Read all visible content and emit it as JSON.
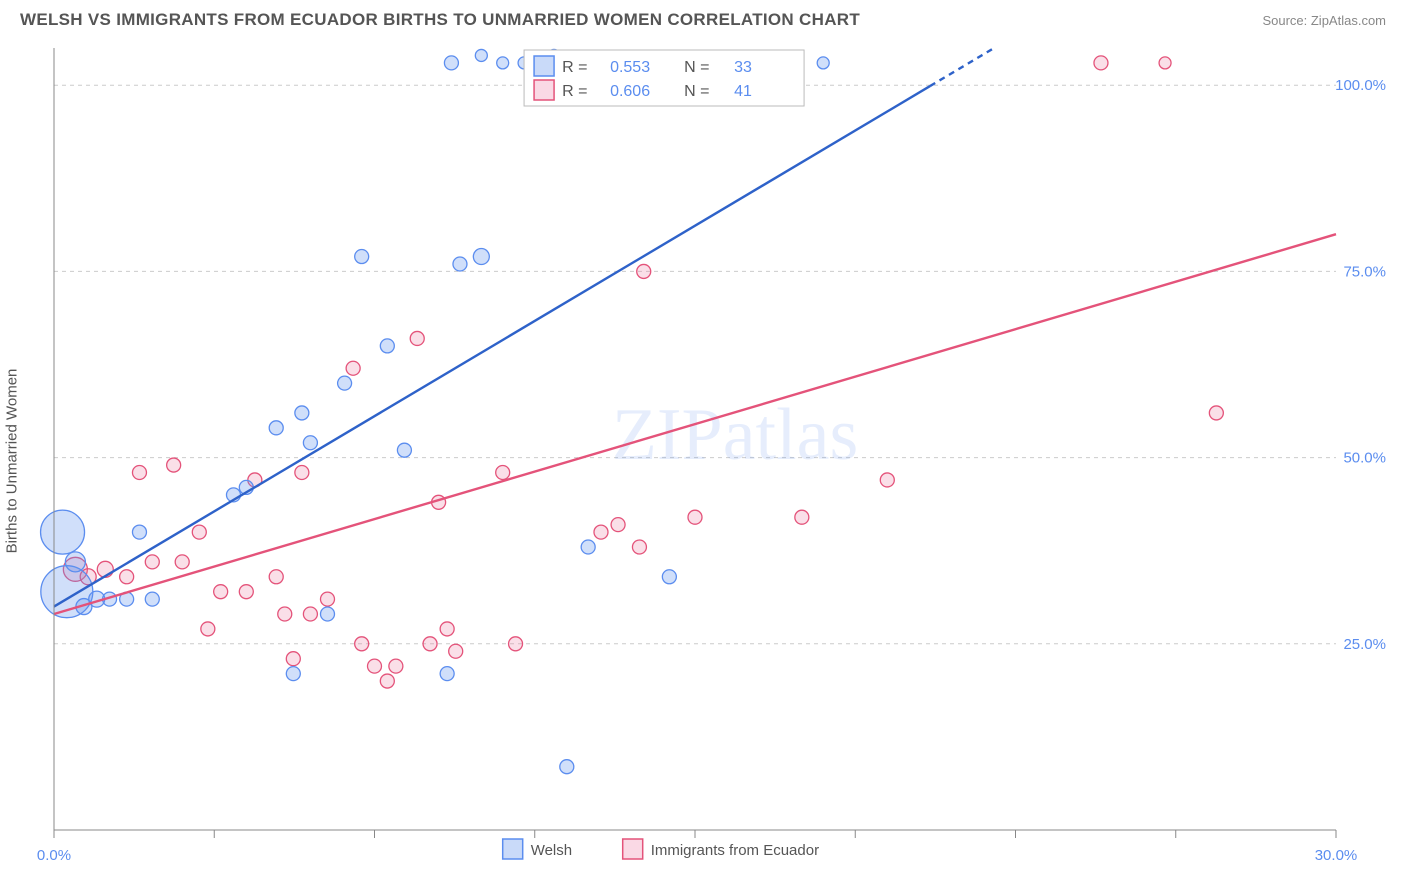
{
  "header": {
    "title": "WELSH VS IMMIGRANTS FROM ECUADOR BIRTHS TO UNMARRIED WOMEN CORRELATION CHART",
    "source": "Source: ZipAtlas.com"
  },
  "axes": {
    "ylabel": "Births to Unmarried Women",
    "xlim": [
      0,
      30
    ],
    "ylim": [
      0,
      105
    ],
    "yticks": [
      25,
      50,
      75,
      100
    ],
    "ytick_labels": [
      "25.0%",
      "50.0%",
      "75.0%",
      "100.0%"
    ],
    "xticks": [
      0,
      3.75,
      7.5,
      11.25,
      15,
      18.75,
      22.5,
      26.25,
      30
    ],
    "xtick_labels": {
      "0": "0.0%",
      "30": "30.0%"
    }
  },
  "watermark": "ZIPatlas",
  "series": {
    "blue": {
      "label": "Welsh",
      "color_fill": "rgba(100,150,237,0.30)",
      "color_stroke": "#5b8def",
      "R": "0.553",
      "N": "33",
      "trend": {
        "x1": 0,
        "y1": 30,
        "x2": 22,
        "y2": 105,
        "dash_from_x": 20.5
      },
      "points": [
        {
          "x": 0.2,
          "y": 40,
          "r": 22
        },
        {
          "x": 0.3,
          "y": 32,
          "r": 26
        },
        {
          "x": 0.5,
          "y": 36,
          "r": 10
        },
        {
          "x": 0.7,
          "y": 30,
          "r": 8
        },
        {
          "x": 1.0,
          "y": 31,
          "r": 8
        },
        {
          "x": 1.3,
          "y": 31,
          "r": 7
        },
        {
          "x": 1.7,
          "y": 31,
          "r": 7
        },
        {
          "x": 2.0,
          "y": 40,
          "r": 7
        },
        {
          "x": 2.3,
          "y": 31,
          "r": 7
        },
        {
          "x": 4.2,
          "y": 45,
          "r": 7
        },
        {
          "x": 4.5,
          "y": 46,
          "r": 7
        },
        {
          "x": 5.2,
          "y": 54,
          "r": 7
        },
        {
          "x": 5.6,
          "y": 21,
          "r": 7
        },
        {
          "x": 5.8,
          "y": 56,
          "r": 7
        },
        {
          "x": 6.0,
          "y": 52,
          "r": 7
        },
        {
          "x": 6.4,
          "y": 29,
          "r": 7
        },
        {
          "x": 6.8,
          "y": 60,
          "r": 7
        },
        {
          "x": 7.2,
          "y": 77,
          "r": 7
        },
        {
          "x": 7.8,
          "y": 65,
          "r": 7
        },
        {
          "x": 8.2,
          "y": 51,
          "r": 7
        },
        {
          "x": 9.2,
          "y": 21,
          "r": 7
        },
        {
          "x": 9.3,
          "y": 103,
          "r": 7
        },
        {
          "x": 9.5,
          "y": 76,
          "r": 7
        },
        {
          "x": 10.0,
          "y": 77,
          "r": 8
        },
        {
          "x": 10.0,
          "y": 104,
          "r": 6
        },
        {
          "x": 10.5,
          "y": 103,
          "r": 6
        },
        {
          "x": 11.0,
          "y": 103,
          "r": 6
        },
        {
          "x": 11.4,
          "y": 103,
          "r": 6
        },
        {
          "x": 11.7,
          "y": 104,
          "r": 6
        },
        {
          "x": 12.0,
          "y": 8.5,
          "r": 7
        },
        {
          "x": 12.5,
          "y": 38,
          "r": 7
        },
        {
          "x": 14.4,
          "y": 34,
          "r": 7
        },
        {
          "x": 18.0,
          "y": 103,
          "r": 6
        }
      ]
    },
    "pink": {
      "label": "Immigrants from Ecuador",
      "color_fill": "rgba(236,120,160,0.24)",
      "color_stroke": "#e4537a",
      "R": "0.606",
      "N": "41",
      "trend": {
        "x1": 0,
        "y1": 29,
        "x2": 30,
        "y2": 80
      },
      "points": [
        {
          "x": 0.5,
          "y": 35,
          "r": 12
        },
        {
          "x": 0.8,
          "y": 34,
          "r": 8
        },
        {
          "x": 1.2,
          "y": 35,
          "r": 8
        },
        {
          "x": 1.7,
          "y": 34,
          "r": 7
        },
        {
          "x": 2.0,
          "y": 48,
          "r": 7
        },
        {
          "x": 2.3,
          "y": 36,
          "r": 7
        },
        {
          "x": 2.8,
          "y": 49,
          "r": 7
        },
        {
          "x": 3.0,
          "y": 36,
          "r": 7
        },
        {
          "x": 3.4,
          "y": 40,
          "r": 7
        },
        {
          "x": 3.6,
          "y": 27,
          "r": 7
        },
        {
          "x": 3.9,
          "y": 32,
          "r": 7
        },
        {
          "x": 4.5,
          "y": 32,
          "r": 7
        },
        {
          "x": 4.7,
          "y": 47,
          "r": 7
        },
        {
          "x": 5.2,
          "y": 34,
          "r": 7
        },
        {
          "x": 5.4,
          "y": 29,
          "r": 7
        },
        {
          "x": 5.6,
          "y": 23,
          "r": 7
        },
        {
          "x": 5.8,
          "y": 48,
          "r": 7
        },
        {
          "x": 6.0,
          "y": 29,
          "r": 7
        },
        {
          "x": 6.4,
          "y": 31,
          "r": 7
        },
        {
          "x": 7.0,
          "y": 62,
          "r": 7
        },
        {
          "x": 7.2,
          "y": 25,
          "r": 7
        },
        {
          "x": 7.5,
          "y": 22,
          "r": 7
        },
        {
          "x": 7.8,
          "y": 20,
          "r": 7
        },
        {
          "x": 8.0,
          "y": 22,
          "r": 7
        },
        {
          "x": 8.5,
          "y": 66,
          "r": 7
        },
        {
          "x": 8.8,
          "y": 25,
          "r": 7
        },
        {
          "x": 9.0,
          "y": 44,
          "r": 7
        },
        {
          "x": 9.2,
          "y": 27,
          "r": 7
        },
        {
          "x": 9.4,
          "y": 24,
          "r": 7
        },
        {
          "x": 10.5,
          "y": 48,
          "r": 7
        },
        {
          "x": 10.8,
          "y": 25,
          "r": 7
        },
        {
          "x": 12.8,
          "y": 40,
          "r": 7
        },
        {
          "x": 13.2,
          "y": 41,
          "r": 7
        },
        {
          "x": 13.7,
          "y": 38,
          "r": 7
        },
        {
          "x": 13.8,
          "y": 75,
          "r": 7
        },
        {
          "x": 15.0,
          "y": 42,
          "r": 7
        },
        {
          "x": 17.5,
          "y": 42,
          "r": 7
        },
        {
          "x": 19.5,
          "y": 47,
          "r": 7
        },
        {
          "x": 24.5,
          "y": 103,
          "r": 7
        },
        {
          "x": 26.0,
          "y": 103,
          "r": 6
        },
        {
          "x": 27.2,
          "y": 56,
          "r": 7
        }
      ]
    }
  },
  "legend_top": {
    "r_prefix": "R  =",
    "n_prefix": "N  ="
  },
  "styling": {
    "background": "#ffffff",
    "grid_color": "#cccccc",
    "axis_color": "#888888",
    "tick_label_color": "#5b8def",
    "trend_blue": "#2e62c9",
    "trend_pink": "#e4537a",
    "trend_width": 2.4
  }
}
